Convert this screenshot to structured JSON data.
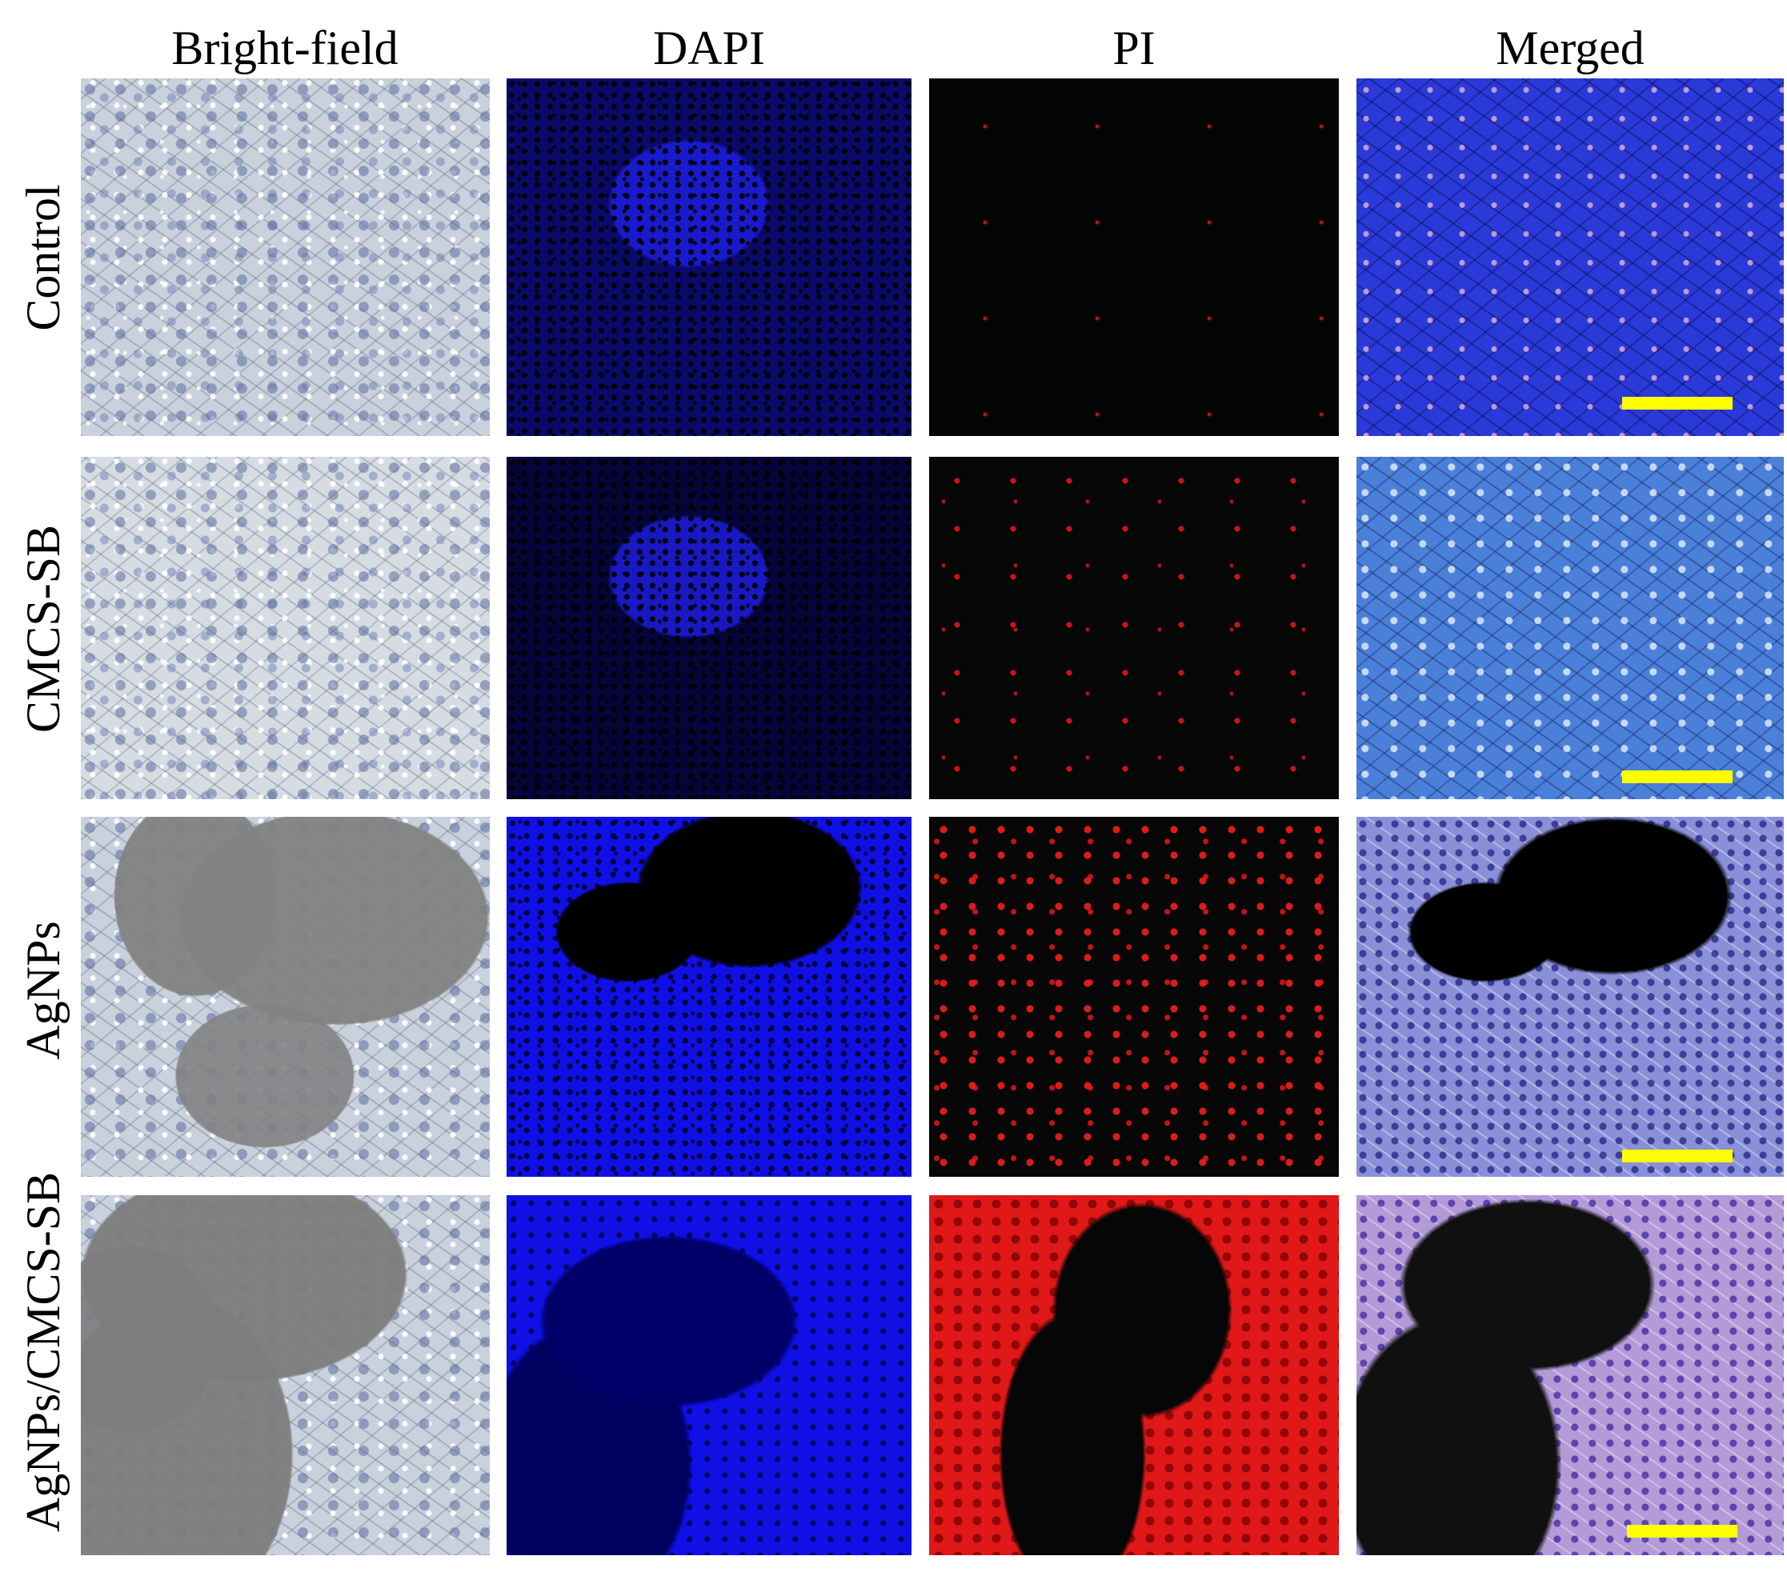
{
  "columns": [
    "Bright-field",
    "DAPI",
    "PI",
    "Merged"
  ],
  "rows": [
    "Control",
    "CMCS-SB",
    "AgNPs",
    "AgNPs/CMCS-SB"
  ],
  "scale_bar_color": "#ffff00"
}
